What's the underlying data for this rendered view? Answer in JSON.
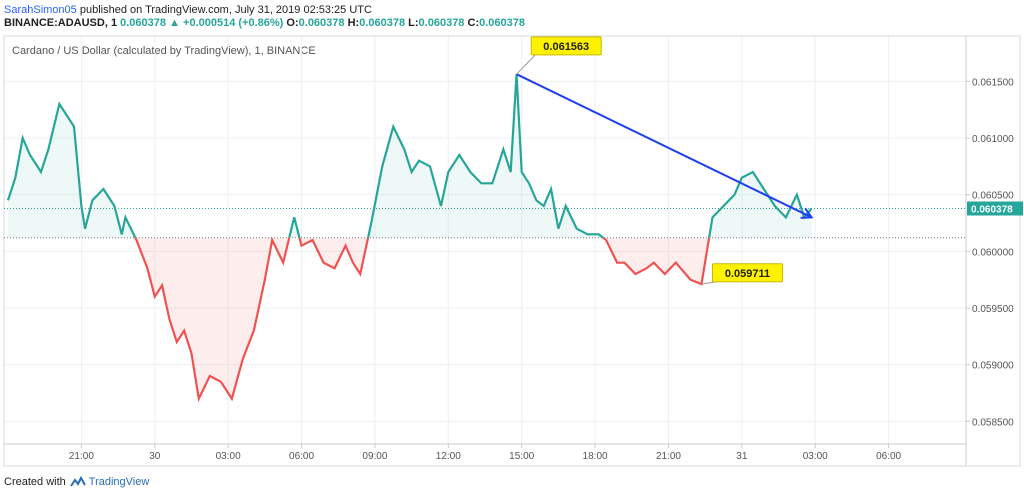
{
  "header": {
    "author": "SarahSimon05",
    "published_text": "published on TradingView.com, July 31, 2019 02:53:25 UTC",
    "symbol": "BINANCE:ADAUSD, 1",
    "last": "0.060378",
    "change": "+0.000514 (+0.86%)",
    "open_label": "O:",
    "open": "0.060378",
    "high_label": "H:",
    "high": "0.060378",
    "low_label": "L:",
    "low": "0.060378",
    "close_label": "C:",
    "close": "0.060378"
  },
  "footer": {
    "created_with": "Created with",
    "brand": "TradingView"
  },
  "colors": {
    "up": "#26a69a",
    "down": "#ef5350",
    "arrow": "#1f3ff0",
    "callout": "#fff200",
    "last_price_bg": "#26a69a"
  },
  "chart_data": {
    "type": "line",
    "title": "Cardano / US Dollar (calculated by TradingView), 1, BINANCE",
    "baseline": 0.06012,
    "ylim": [
      0.0583,
      0.0619
    ],
    "y_ticks": [
      "0.061500",
      "0.061000",
      "0.060500",
      "0.060000",
      "0.059500",
      "0.059000",
      "0.058500"
    ],
    "x_ticks": [
      "21:00",
      "30",
      "03:00",
      "06:00",
      "09:00",
      "12:00",
      "15:00",
      "18:00",
      "21:00",
      "31",
      "03:00",
      "06:00"
    ],
    "x_tick_positions": [
      1,
      2,
      3,
      4,
      5,
      6,
      7,
      8,
      9,
      10,
      11,
      12
    ],
    "x_range": [
      0.0,
      13.0
    ],
    "last_price": "0.060378",
    "grid": true,
    "series": [
      {
        "x": [
          0.0,
          0.1,
          0.2,
          0.3,
          0.45,
          0.55,
          0.7,
          0.9,
          1.0,
          1.05,
          1.15,
          1.3,
          1.45,
          1.55,
          1.6,
          1.75,
          1.9,
          2.0,
          2.1,
          2.2,
          2.3,
          2.4,
          2.5,
          2.6,
          2.75,
          2.9,
          3.05,
          3.2,
          3.35,
          3.5,
          3.6,
          3.75,
          3.9,
          4.0,
          4.15,
          4.3,
          4.45,
          4.6,
          4.7,
          4.8,
          4.95,
          5.1,
          5.25,
          5.4,
          5.5,
          5.6,
          5.75,
          5.9,
          6.0,
          6.15,
          6.3,
          6.45,
          6.6,
          6.75,
          6.85,
          6.93,
          7.0,
          7.1,
          7.2,
          7.3,
          7.4,
          7.5,
          7.6,
          7.75,
          7.9,
          8.05,
          8.15,
          8.3,
          8.4,
          8.55,
          8.7,
          8.8,
          8.95,
          9.1,
          9.3,
          9.45,
          9.6,
          9.75,
          9.9,
          10.0,
          10.15,
          10.3,
          10.45,
          10.6,
          10.75,
          10.85,
          10.95
        ],
        "y": [
          0.06045,
          0.06065,
          0.061,
          0.06085,
          0.0607,
          0.0609,
          0.0613,
          0.0611,
          0.0604,
          0.0602,
          0.06045,
          0.06055,
          0.0604,
          0.06015,
          0.0603,
          0.0601,
          0.05985,
          0.0596,
          0.0597,
          0.0594,
          0.0592,
          0.0593,
          0.0591,
          0.0587,
          0.0589,
          0.05885,
          0.0587,
          0.05905,
          0.0593,
          0.05975,
          0.0601,
          0.0599,
          0.0603,
          0.06005,
          0.0601,
          0.0599,
          0.05985,
          0.06005,
          0.0599,
          0.0598,
          0.06025,
          0.06075,
          0.0611,
          0.0609,
          0.0607,
          0.0608,
          0.06075,
          0.0604,
          0.0607,
          0.06085,
          0.0607,
          0.0606,
          0.0606,
          0.0609,
          0.0607,
          0.061563,
          0.0607,
          0.0606,
          0.06045,
          0.0604,
          0.06055,
          0.0602,
          0.0604,
          0.0602,
          0.06015,
          0.06015,
          0.0601,
          0.0599,
          0.0599,
          0.0598,
          0.05985,
          0.0599,
          0.0598,
          0.0599,
          0.05975,
          0.059711,
          0.0603,
          0.0604,
          0.0605,
          0.06065,
          0.0607,
          0.06055,
          0.0604,
          0.0603,
          0.0605,
          0.0603,
          0.060378
        ]
      }
    ],
    "annotations": [
      {
        "label": "0.061563",
        "x": 6.93,
        "y": 0.061563,
        "dx": 0.2,
        "dy": 0.00025
      },
      {
        "label": "0.059711",
        "x": 9.45,
        "y": 0.059711,
        "dx": 0.15,
        "dy": 0.0001
      }
    ],
    "arrow": {
      "from": [
        6.93,
        0.061563
      ],
      "to": [
        10.95,
        0.0603
      ]
    }
  }
}
